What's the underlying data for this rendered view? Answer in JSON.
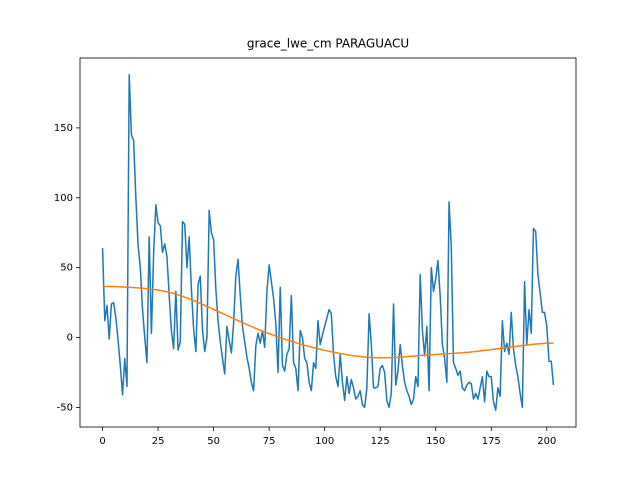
{
  "chart_data": {
    "type": "line",
    "title": "grace_lwe_cm PARAGUACU",
    "x": [
      0,
      1,
      2,
      3,
      4,
      5,
      6,
      7,
      8,
      9,
      10,
      11,
      12,
      13,
      14,
      15,
      16,
      17,
      18,
      19,
      20,
      21,
      22,
      23,
      24,
      25,
      26,
      27,
      28,
      29,
      30,
      31,
      32,
      33,
      34,
      35,
      36,
      37,
      38,
      39,
      40,
      41,
      42,
      43,
      44,
      45,
      46,
      47,
      48,
      49,
      50,
      51,
      52,
      53,
      54,
      55,
      56,
      57,
      58,
      59,
      60,
      61,
      62,
      63,
      64,
      65,
      66,
      67,
      68,
      69,
      70,
      71,
      72,
      73,
      74,
      75,
      76,
      77,
      78,
      79,
      80,
      81,
      82,
      83,
      84,
      85,
      86,
      87,
      88,
      89,
      90,
      91,
      92,
      93,
      94,
      95,
      96,
      97,
      98,
      99,
      100,
      101,
      102,
      103,
      104,
      105,
      106,
      107,
      108,
      109,
      110,
      111,
      112,
      113,
      114,
      115,
      116,
      117,
      118,
      119,
      120,
      121,
      122,
      123,
      124,
      125,
      126,
      127,
      128,
      129,
      130,
      131,
      132,
      133,
      134,
      135,
      136,
      137,
      138,
      139,
      140,
      141,
      142,
      143,
      144,
      145,
      146,
      147,
      148,
      149,
      150,
      151,
      152,
      153,
      154,
      155,
      156,
      157,
      158,
      159,
      160,
      161,
      162,
      163,
      164,
      165,
      166,
      167,
      168,
      169,
      170,
      171,
      172,
      173,
      174,
      175,
      176,
      177,
      178,
      179,
      180,
      181,
      182,
      183,
      184,
      185,
      186,
      187,
      188,
      189,
      190,
      191,
      192,
      193,
      194,
      195,
      196,
      197,
      198,
      199,
      200,
      201,
      202,
      203
    ],
    "series": [
      {
        "color": "#1f77b4",
        "values": [
          64,
          12,
          23,
          -1,
          24,
          25,
          14,
          -2,
          -20,
          -41,
          -15,
          -35,
          188,
          145,
          141,
          100,
          66,
          50,
          20,
          0,
          -18,
          72,
          3,
          60,
          95,
          82,
          80,
          61,
          67,
          58,
          30,
          5,
          -8,
          33,
          -9,
          -3,
          83,
          81,
          50,
          72,
          35,
          6,
          -10,
          38,
          44,
          5,
          -10,
          0,
          91,
          75,
          70,
          35,
          12,
          -3,
          -15,
          -26,
          8,
          -2,
          -11,
          10,
          44,
          56,
          30,
          8,
          -3,
          -14,
          -22,
          -32,
          -38,
          -6,
          3,
          -4,
          5,
          -7,
          33,
          52,
          40,
          28,
          10,
          -25,
          36,
          -20,
          -24,
          -12,
          -8,
          30,
          -18,
          -22,
          -38,
          5,
          0,
          -15,
          -18,
          -32,
          -38,
          -18,
          -22,
          12,
          -5,
          2,
          8,
          14,
          20,
          17,
          -12,
          -28,
          -35,
          -12,
          -32,
          -45,
          -28,
          -40,
          -30,
          -36,
          -44,
          -42,
          -38,
          -48,
          -50,
          -36,
          17,
          -5,
          -36,
          -36,
          -35,
          -22,
          -20,
          -25,
          -45,
          -50,
          -40,
          24,
          -34,
          -24,
          -5,
          -20,
          -32,
          -38,
          -42,
          -48,
          -44,
          -28,
          -35,
          45,
          5,
          -13,
          8,
          -38,
          50,
          33,
          42,
          55,
          30,
          -5,
          -15,
          -32,
          97,
          65,
          -18,
          -22,
          -27,
          -24,
          -36,
          -38,
          -34,
          -32,
          -33,
          -44,
          -40,
          -44,
          -36,
          -28,
          -46,
          -24,
          -28,
          -28,
          -46,
          -52,
          -36,
          -42,
          12,
          -10,
          -4,
          -12,
          18,
          -8,
          -20,
          -28,
          -40,
          -50,
          40,
          -5,
          20,
          3,
          78,
          76,
          45,
          32,
          18,
          18,
          8,
          -17,
          -17,
          -34
        ]
      },
      {
        "color": "#ff7f0e",
        "values": [
          36.5,
          36.5,
          36.5,
          36.5,
          36.4,
          36.4,
          36.4,
          36.3,
          36.3,
          36.2,
          36.1,
          36.0,
          35.9,
          35.8,
          35.7,
          35.6,
          35.5,
          35.4,
          35.3,
          35.1,
          35.0,
          34.8,
          34.6,
          34.4,
          34.2,
          34.0,
          33.7,
          33.4,
          33.1,
          32.7,
          32.3,
          31.9,
          31.5,
          31.0,
          30.5,
          30.0,
          29.5,
          28.9,
          28.3,
          27.7,
          27.1,
          26.5,
          25.8,
          25.1,
          24.4,
          23.7,
          23.0,
          22.3,
          21.6,
          20.9,
          20.1,
          19.4,
          18.7,
          17.9,
          17.2,
          16.5,
          15.7,
          15.0,
          14.3,
          13.6,
          12.8,
          12.1,
          11.4,
          10.7,
          10.0,
          9.3,
          8.6,
          7.9,
          7.2,
          6.5,
          5.9,
          5.2,
          4.6,
          4.0,
          3.4,
          2.8,
          2.2,
          1.6,
          1.0,
          0.4,
          -0.1,
          -0.7,
          -1.2,
          -1.7,
          -2.2,
          -2.7,
          -3.2,
          -3.7,
          -4.2,
          -4.7,
          -5.1,
          -5.6,
          -6.0,
          -6.4,
          -6.8,
          -7.2,
          -7.6,
          -8.0,
          -8.4,
          -8.8,
          -9.2,
          -9.5,
          -9.9,
          -10.2,
          -10.5,
          -10.8,
          -11.1,
          -11.4,
          -11.7,
          -12.0,
          -12.3,
          -12.5,
          -12.8,
          -13.0,
          -13.2,
          -13.4,
          -13.6,
          -13.8,
          -13.9,
          -14.1,
          -14.2,
          -14.3,
          -14.4,
          -14.4,
          -14.5,
          -14.5,
          -14.5,
          -14.5,
          -14.5,
          -14.4,
          -14.4,
          -14.3,
          -14.2,
          -14.1,
          -14.0,
          -13.9,
          -13.8,
          -13.7,
          -13.5,
          -13.4,
          -13.2,
          -13.1,
          -13.0,
          -12.8,
          -12.7,
          -12.6,
          -12.5,
          -12.4,
          -12.3,
          -12.2,
          -12.1,
          -12.0,
          -11.9,
          -11.8,
          -11.7,
          -11.6,
          -11.5,
          -11.4,
          -11.3,
          -11.2,
          -11.1,
          -11.0,
          -10.9,
          -10.7,
          -10.6,
          -10.5,
          -10.3,
          -10.2,
          -10.0,
          -9.8,
          -9.6,
          -9.4,
          -9.2,
          -9.0,
          -8.8,
          -8.6,
          -8.4,
          -8.2,
          -8.0,
          -7.8,
          -7.6,
          -7.4,
          -7.2,
          -7.0,
          -6.8,
          -6.6,
          -6.4,
          -6.2,
          -6.0,
          -5.8,
          -5.6,
          -5.4,
          -5.2,
          -5.0,
          -4.8,
          -4.6,
          -4.5,
          -4.4,
          -4.3,
          -4.2,
          -4.1,
          -4.1,
          -4.0,
          -4.0
        ]
      }
    ],
    "xlim": [
      -10.15,
      213.15
    ],
    "xticks": [
      0,
      25,
      50,
      75,
      100,
      125,
      150,
      175,
      200
    ],
    "ylim": [
      -64,
      200
    ],
    "yticks": [
      -50,
      0,
      50,
      100,
      150
    ],
    "grid": false
  }
}
